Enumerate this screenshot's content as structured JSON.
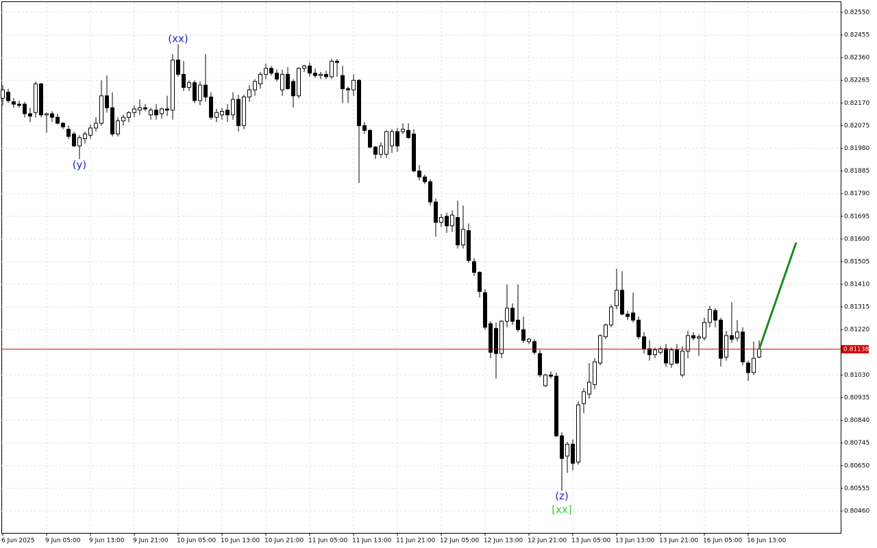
{
  "chart_data": {
    "type": "candlestick",
    "grid": true,
    "up_color": "#ffffff",
    "down_color": "#000000",
    "categories": [
      "6 Jun 2025",
      null,
      null,
      null,
      null,
      null,
      null,
      null,
      "9 Jun 05:00",
      null,
      null,
      null,
      null,
      null,
      null,
      null,
      "9 Jun 13:00",
      null,
      null,
      null,
      null,
      null,
      null,
      null,
      "9 Jun 21:00",
      null,
      null,
      null,
      null,
      null,
      null,
      null,
      "10 Jun 05:00",
      null,
      null,
      null,
      null,
      null,
      null,
      null,
      "10 Jun 13:00",
      null,
      null,
      null,
      null,
      null,
      null,
      null,
      "10 Jun 21:00",
      null,
      null,
      null,
      null,
      null,
      null,
      null,
      "11 Jun 05:00",
      null,
      null,
      null,
      null,
      null,
      null,
      null,
      "11 Jun 13:00",
      null,
      null,
      null,
      null,
      null,
      null,
      null,
      "11 Jun 21:00",
      null,
      null,
      null,
      null,
      null,
      null,
      null,
      "12 Jun 05:00",
      null,
      null,
      null,
      null,
      null,
      null,
      null,
      "12 Jun 13:00",
      null,
      null,
      null,
      null,
      null,
      null,
      null,
      "12 Jun 21:00",
      null,
      null,
      null,
      null,
      null,
      null,
      null,
      "13 Jun 05:00",
      null,
      null,
      null,
      null,
      null,
      null,
      null,
      "13 Jun 13:00",
      null,
      null,
      null,
      null,
      null,
      null,
      null,
      "13 Jun 21:00",
      null,
      null,
      null,
      null,
      null,
      null,
      null,
      "16 Jun 05:00",
      null,
      null,
      null,
      null,
      null,
      null,
      null,
      "16 Jun 13:00",
      null,
      null
    ],
    "open": [
      0.8219,
      0.82215,
      0.82175,
      0.82165,
      0.82165,
      0.82125,
      0.8213,
      0.8225,
      0.8212,
      0.82125,
      0.8211,
      0.82085,
      0.8206,
      0.8204,
      0.8199,
      0.8202,
      0.82035,
      0.82065,
      0.82085,
      0.822,
      0.8215,
      0.8204,
      0.82095,
      0.8211,
      0.8213,
      0.8214,
      0.8215,
      0.8212,
      0.8214,
      0.82125,
      0.82145,
      0.8214,
      0.8235,
      0.8229,
      0.82235,
      0.82255,
      0.8218,
      0.82245,
      0.82195,
      0.8211,
      0.8212,
      0.8214,
      0.8212,
      0.82185,
      0.82075,
      0.82195,
      0.82225,
      0.8225,
      0.8229,
      0.82315,
      0.82295,
      0.82225,
      0.8229,
      0.8226,
      0.822,
      0.82315,
      0.82325,
      0.82295,
      0.82285,
      0.8229,
      0.8228,
      0.82345,
      0.82285,
      0.8223,
      0.82225,
      0.82265,
      0.82075,
      0.82055,
      0.81985,
      0.81955,
      0.81955,
      0.8199,
      0.8205,
      0.8205,
      0.82055,
      0.8204,
      0.81885,
      0.8186,
      0.8184,
      0.81755,
      0.8167,
      0.81695,
      0.81655,
      0.8169,
      0.81575,
      0.81635,
      0.81505,
      0.8146,
      0.81375,
      0.81245,
      0.81225,
      0.8112,
      0.81255,
      0.8131,
      0.8126,
      0.8122,
      0.8117,
      0.8117,
      0.8112,
      0.80985,
      0.8103,
      0.81025,
      0.80775,
      0.8069,
      0.8074,
      0.80665,
      0.8091,
      0.8095,
      0.8099,
      0.8108,
      0.8119,
      0.8124,
      0.8132,
      0.81385,
      0.81285,
      0.8129,
      0.8126,
      0.8119,
      0.8114,
      0.81115,
      0.81125,
      0.8114,
      0.81075,
      0.81135,
      0.8103,
      0.8113,
      0.81195,
      0.81185,
      0.81185,
      0.8125,
      0.813,
      0.8126,
      0.81105,
      0.81195,
      0.81185,
      0.8121,
      0.8108,
      0.8104,
      0.81105
    ],
    "high": [
      0.82245,
      0.8223,
      0.8219,
      0.8218,
      0.82175,
      0.8215,
      0.8226,
      0.82255,
      0.8213,
      0.82135,
      0.82125,
      0.8209,
      0.82075,
      0.8205,
      0.82035,
      0.8205,
      0.8208,
      0.8211,
      0.82265,
      0.82285,
      0.82215,
      0.8211,
      0.8212,
      0.82135,
      0.8216,
      0.82185,
      0.82165,
      0.8215,
      0.82165,
      0.8215,
      0.822,
      0.82375,
      0.82415,
      0.82345,
      0.82265,
      0.82265,
      0.8226,
      0.82375,
      0.82215,
      0.82145,
      0.8215,
      0.82165,
      0.82215,
      0.82205,
      0.82205,
      0.82245,
      0.8227,
      0.823,
      0.82335,
      0.82325,
      0.8231,
      0.8231,
      0.8232,
      0.8227,
      0.8232,
      0.8233,
      0.8234,
      0.82315,
      0.823,
      0.82305,
      0.82355,
      0.82355,
      0.82325,
      0.8224,
      0.8229,
      0.8227,
      0.8209,
      0.8206,
      0.8199,
      0.82005,
      0.82055,
      0.8206,
      0.82065,
      0.82085,
      0.82085,
      0.8206,
      0.8191,
      0.8187,
      0.8185,
      0.8177,
      0.81705,
      0.8171,
      0.8172,
      0.8176,
      0.8174,
      0.81665,
      0.8152,
      0.81465,
      0.8139,
      0.81255,
      0.8125,
      0.8126,
      0.8141,
      0.8133,
      0.8141,
      0.81275,
      0.81185,
      0.8118,
      0.81135,
      0.81035,
      0.81045,
      0.8104,
      0.8079,
      0.8075,
      0.8076,
      0.8092,
      0.80975,
      0.8108,
      0.811,
      0.812,
      0.81245,
      0.81325,
      0.81475,
      0.81465,
      0.813,
      0.81375,
      0.81275,
      0.8121,
      0.81175,
      0.81145,
      0.8115,
      0.8116,
      0.81145,
      0.8116,
      0.8115,
      0.81215,
      0.8121,
      0.812,
      0.8127,
      0.8132,
      0.8131,
      0.8127,
      0.81215,
      0.81335,
      0.8126,
      0.8123,
      0.8109,
      0.8117,
      0.81175
    ],
    "low": [
      0.8216,
      0.8217,
      0.8215,
      0.8215,
      0.8211,
      0.8209,
      0.8211,
      0.8211,
      0.82045,
      0.8209,
      0.8208,
      0.8206,
      0.8202,
      0.81985,
      0.81935,
      0.82,
      0.8202,
      0.8205,
      0.82075,
      0.8213,
      0.8203,
      0.8203,
      0.82075,
      0.8209,
      0.8211,
      0.8212,
      0.82135,
      0.821,
      0.821,
      0.82105,
      0.82115,
      0.821,
      0.8228,
      0.8222,
      0.8222,
      0.8217,
      0.8216,
      0.82175,
      0.821,
      0.8209,
      0.821,
      0.8209,
      0.821,
      0.8205,
      0.8206,
      0.82175,
      0.822,
      0.8223,
      0.8227,
      0.82285,
      0.8226,
      0.822,
      0.82225,
      0.8215,
      0.8219,
      0.823,
      0.8228,
      0.82275,
      0.8227,
      0.8227,
      0.8227,
      0.8228,
      0.8217,
      0.8217,
      0.822,
      0.81835,
      0.8204,
      0.8198,
      0.81935,
      0.8194,
      0.8194,
      0.8196,
      0.81965,
      0.8204,
      0.8202,
      0.8188,
      0.81845,
      0.8183,
      0.8174,
      0.8161,
      0.8165,
      0.81625,
      0.8163,
      0.8156,
      0.8156,
      0.815,
      0.81445,
      0.81355,
      0.8122,
      0.811,
      0.81015,
      0.811,
      0.8123,
      0.8124,
      0.8121,
      0.81165,
      0.8116,
      0.81115,
      0.8102,
      0.8098,
      0.81015,
      0.8077,
      0.80545,
      0.8062,
      0.8063,
      0.80655,
      0.8087,
      0.8093,
      0.8097,
      0.8107,
      0.8118,
      0.8123,
      0.81305,
      0.8128,
      0.8126,
      0.8125,
      0.8118,
      0.8112,
      0.8109,
      0.811,
      0.81115,
      0.81065,
      0.8106,
      0.81075,
      0.8102,
      0.811,
      0.81175,
      0.8111,
      0.81175,
      0.8123,
      0.8123,
      0.81065,
      0.8109,
      0.81165,
      0.8117,
      0.8107,
      0.81005,
      0.8103,
      0.811
    ],
    "close": [
      0.82225,
      0.8218,
      0.82165,
      0.8216,
      0.82125,
      0.82115,
      0.8225,
      0.8212,
      0.82125,
      0.8211,
      0.82085,
      0.8207,
      0.8203,
      0.8199,
      0.82025,
      0.8204,
      0.82065,
      0.82085,
      0.822,
      0.8215,
      0.8204,
      0.82095,
      0.8211,
      0.8213,
      0.82145,
      0.8215,
      0.82145,
      0.8214,
      0.8212,
      0.82145,
      0.8214,
      0.8235,
      0.8229,
      0.82235,
      0.82255,
      0.8218,
      0.82245,
      0.82195,
      0.8211,
      0.8213,
      0.82135,
      0.8212,
      0.82185,
      0.82075,
      0.82195,
      0.82225,
      0.8226,
      0.8229,
      0.82315,
      0.82295,
      0.8227,
      0.8229,
      0.8223,
      0.822,
      0.82315,
      0.82325,
      0.82295,
      0.82285,
      0.8229,
      0.8228,
      0.82345,
      0.8234,
      0.8223,
      0.82225,
      0.82265,
      0.82075,
      0.82055,
      0.81985,
      0.81955,
      0.8199,
      0.8205,
      0.8205,
      0.8199,
      0.8206,
      0.82025,
      0.81885,
      0.8186,
      0.8184,
      0.81755,
      0.8167,
      0.8169,
      0.81655,
      0.817,
      0.81575,
      0.8164,
      0.8151,
      0.8146,
      0.8138,
      0.8123,
      0.81125,
      0.8112,
      0.81255,
      0.8131,
      0.81255,
      0.8122,
      0.81175,
      0.8118,
      0.81125,
      0.8103,
      0.8103,
      0.81025,
      0.80775,
      0.8068,
      0.8074,
      0.8066,
      0.80905,
      0.8096,
      0.81,
      0.81085,
      0.81195,
      0.8124,
      0.81315,
      0.81385,
      0.81285,
      0.81275,
      0.8126,
      0.8119,
      0.8114,
      0.81115,
      0.81135,
      0.8114,
      0.8108,
      0.81135,
      0.8108,
      0.8113,
      0.81195,
      0.81185,
      0.8119,
      0.8125,
      0.81305,
      0.8126,
      0.811,
      0.81195,
      0.8118,
      0.8121,
      0.81085,
      0.8104,
      0.811,
      0.81138
    ],
    "ylim": [
      0.80368,
      0.82593
    ],
    "yticks": [
      {
        "value": 0.8255,
        "label": "0.82550"
      },
      {
        "value": 0.82455,
        "label": "0.82455"
      },
      {
        "value": 0.8236,
        "label": "0.82360"
      },
      {
        "value": 0.82265,
        "label": "0.82265"
      },
      {
        "value": 0.8217,
        "label": "0.82170"
      },
      {
        "value": 0.82075,
        "label": "0.82075"
      },
      {
        "value": 0.8198,
        "label": "0.81980"
      },
      {
        "value": 0.81885,
        "label": "0.81885"
      },
      {
        "value": 0.8179,
        "label": "0.81790"
      },
      {
        "value": 0.81695,
        "label": "0.81695"
      },
      {
        "value": 0.816,
        "label": "0.81600"
      },
      {
        "value": 0.81505,
        "label": "0.81505"
      },
      {
        "value": 0.8141,
        "label": "0.81410"
      },
      {
        "value": 0.81315,
        "label": "0.81315"
      },
      {
        "value": 0.8122,
        "label": "0.81220"
      },
      {
        "value": 0.8103,
        "label": "0.81030"
      },
      {
        "value": 0.80935,
        "label": "0.80935"
      },
      {
        "value": 0.8084,
        "label": "0.80840"
      },
      {
        "value": 0.80745,
        "label": "0.80745"
      },
      {
        "value": 0.8065,
        "label": "0.80650"
      },
      {
        "value": 0.80555,
        "label": "0.80555"
      },
      {
        "value": 0.8046,
        "label": "0.80460"
      }
    ],
    "current_price": 0.81138,
    "price_line_color": "#cc0000",
    "forecast_line": {
      "start": 0.81138,
      "end": 0.81585,
      "color": "#1a8a1a"
    },
    "annotations": [
      {
        "text": "(xx)",
        "color": "#2424c8"
      },
      {
        "text": "(y)",
        "color": "#2424c8"
      },
      {
        "text": "(z)",
        "color": "#2424c8"
      },
      {
        "text": "[xx]",
        "color": "#3ccc3c"
      }
    ]
  }
}
